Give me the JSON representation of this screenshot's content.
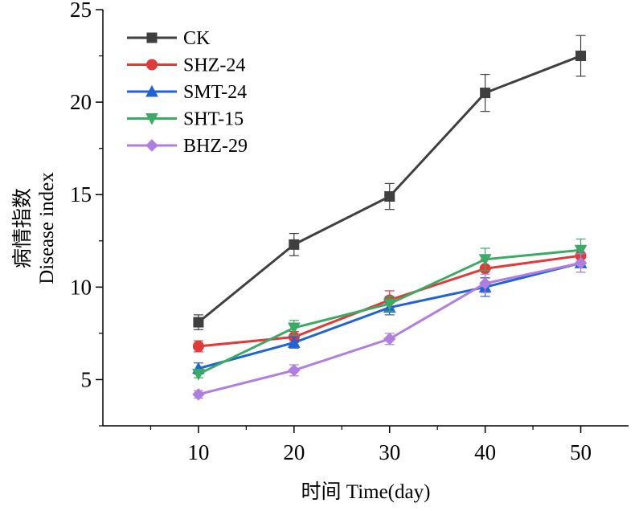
{
  "chart_data": {
    "type": "line",
    "title": "",
    "xlabel": "时间 Time(day)",
    "ylabel_line1": "病情指数",
    "ylabel_line2": "Disease index",
    "x": [
      10,
      20,
      30,
      40,
      50
    ],
    "x_ticks": [
      "10",
      "20",
      "30",
      "40",
      "50"
    ],
    "y_ticks": [
      "5",
      "10",
      "15",
      "20",
      "25"
    ],
    "xlim": [
      0,
      55
    ],
    "ylim": [
      2.5,
      25
    ],
    "legend_position": "top-left",
    "series": [
      {
        "name": "CK",
        "color": "#3f3f3f",
        "marker": "square",
        "values": [
          8.1,
          12.3,
          14.9,
          20.5,
          22.5
        ],
        "errors": [
          0.4,
          0.6,
          0.7,
          1.0,
          1.1
        ]
      },
      {
        "name": "SHZ-24",
        "color": "#e03a3a",
        "marker": "circle",
        "values": [
          6.8,
          7.3,
          9.3,
          11.0,
          11.7
        ],
        "errors": [
          0.3,
          0.3,
          0.5,
          0.5,
          0.5
        ]
      },
      {
        "name": "SMT-24",
        "color": "#1f63d4",
        "marker": "triangle-up",
        "values": [
          5.6,
          7.0,
          8.9,
          10.0,
          11.3
        ],
        "errors": [
          0.3,
          0.3,
          0.4,
          0.5,
          0.5
        ]
      },
      {
        "name": "SHT-15",
        "color": "#3aaa65",
        "marker": "triangle-down",
        "values": [
          5.3,
          7.8,
          9.1,
          11.5,
          12.0
        ],
        "errors": [
          0.2,
          0.4,
          0.4,
          0.6,
          0.6
        ]
      },
      {
        "name": "BHZ-29",
        "color": "#b07ee0",
        "marker": "diamond",
        "values": [
          4.2,
          5.5,
          7.2,
          10.2,
          11.3
        ],
        "errors": [
          0.2,
          0.3,
          0.3,
          0.5,
          0.5
        ]
      }
    ]
  }
}
